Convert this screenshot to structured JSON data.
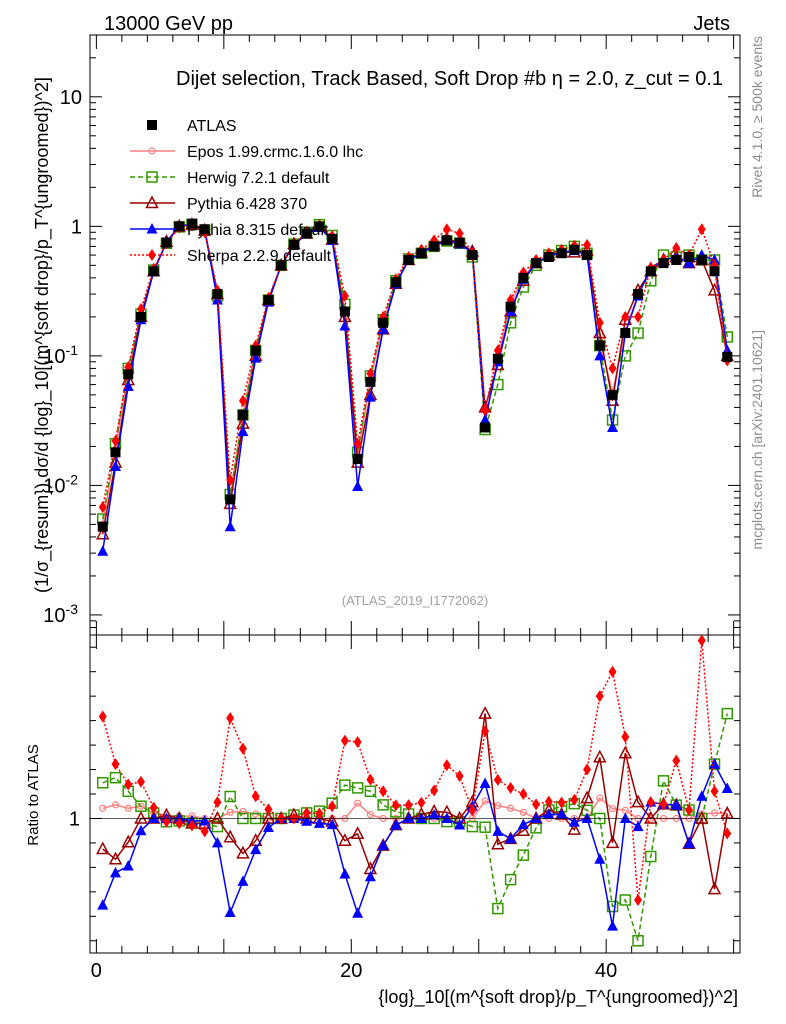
{
  "header": {
    "left": "13000 GeV pp",
    "right": "Jets"
  },
  "side_text": {
    "rivet": "Rivet 4.1.0, ≥ 500k events",
    "mcplots": "mcplots.cern.ch [arXiv:2401.10621]"
  },
  "analysis_tag": "(ATLAS_2019_I1772062)",
  "chart_data": {
    "type": "line",
    "title": "Dijet selection, Track Based, Soft Drop #b η = 2.0, z_cut = 0.1",
    "xlabel": "{log}_10[(m^{soft drop}/p_T^{ungroomed})^2]",
    "ylabel": "(1/σ_{resum}) dσ/d {log}_10[(m^{soft drop}/p_T^{ungroomed})^2]",
    "ratio_ylabel": "Ratio to ATLAS",
    "xlim": [
      -0.5,
      50.5
    ],
    "ylim": [
      0.0007,
      30
    ],
    "yscale": "log",
    "ratio_ylim": [
      0.45,
      1.75
    ],
    "x_ticks": [
      "0",
      "20",
      "40"
    ],
    "y_ticks": [
      "10^-3",
      "10^-2",
      "10^-1",
      "1",
      "10"
    ],
    "ratio_ticks": [
      "1"
    ],
    "x": [
      0.5,
      1.5,
      2.5,
      3.5,
      4.5,
      5.5,
      6.5,
      7.5,
      8.5,
      9.5,
      10.5,
      11.5,
      12.5,
      13.5,
      14.5,
      15.5,
      16.5,
      17.5,
      18.5,
      19.5,
      20.5,
      21.5,
      22.5,
      23.5,
      24.5,
      25.5,
      26.5,
      27.5,
      28.5,
      29.5,
      30.5,
      31.5,
      32.5,
      33.5,
      34.5,
      35.5,
      36.5,
      37.5,
      38.5,
      39.5,
      40.5,
      41.5,
      42.5,
      43.5,
      44.5,
      45.5,
      46.5,
      47.5,
      48.5,
      49.5
    ],
    "series": [
      {
        "name": "ATLAS",
        "color": "#000000",
        "marker": "square",
        "values": [
          0.0048,
          0.018,
          0.072,
          0.2,
          0.45,
          0.75,
          1.0,
          1.05,
          0.95,
          0.3,
          0.0078,
          0.035,
          0.11,
          0.27,
          0.5,
          0.72,
          0.88,
          1.0,
          0.8,
          0.22,
          0.016,
          0.063,
          0.18,
          0.37,
          0.55,
          0.62,
          0.7,
          0.78,
          0.75,
          0.6,
          0.028,
          0.095,
          0.24,
          0.4,
          0.52,
          0.58,
          0.62,
          0.66,
          0.6,
          0.12,
          0.05,
          0.15,
          0.3,
          0.45,
          0.52,
          0.55,
          0.58,
          0.55,
          0.45,
          0.098
        ]
      },
      {
        "name": "Epos 1.99.crmc.1.6.0 lhc",
        "color": "#ff8080",
        "marker": "star",
        "line": "solid",
        "values": [
          0.005,
          0.019,
          0.075,
          0.21,
          0.46,
          0.76,
          1.01,
          1.06,
          0.95,
          0.3,
          0.008,
          0.036,
          0.112,
          0.27,
          0.5,
          0.72,
          0.88,
          1.0,
          0.8,
          0.22,
          0.017,
          0.064,
          0.18,
          0.37,
          0.55,
          0.62,
          0.7,
          0.78,
          0.75,
          0.6,
          0.03,
          0.1,
          0.25,
          0.41,
          0.52,
          0.58,
          0.62,
          0.66,
          0.6,
          0.13,
          0.052,
          0.155,
          0.3,
          0.45,
          0.52,
          0.55,
          0.58,
          0.56,
          0.46,
          0.1
        ]
      },
      {
        "name": "Herwig 7.2.1 default",
        "color": "#339900",
        "marker": "open-square",
        "line": "dashed",
        "values": [
          0.0055,
          0.021,
          0.08,
          0.21,
          0.46,
          0.74,
          0.99,
          1.03,
          0.93,
          0.29,
          0.0085,
          0.035,
          0.11,
          0.27,
          0.5,
          0.73,
          0.9,
          1.03,
          0.85,
          0.25,
          0.018,
          0.07,
          0.19,
          0.38,
          0.56,
          0.62,
          0.7,
          0.77,
          0.74,
          0.58,
          0.027,
          0.06,
          0.18,
          0.34,
          0.5,
          0.6,
          0.65,
          0.7,
          0.62,
          0.12,
          0.032,
          0.1,
          0.15,
          0.38,
          0.6,
          0.58,
          0.6,
          0.55,
          0.55,
          0.14
        ]
      },
      {
        "name": "Pythia 6.428 370",
        "color": "#990000",
        "marker": "open-triangle",
        "line": "solid",
        "values": [
          0.0042,
          0.015,
          0.065,
          0.2,
          0.45,
          0.76,
          1.0,
          1.03,
          0.93,
          0.3,
          0.0072,
          0.03,
          0.1,
          0.27,
          0.5,
          0.73,
          0.88,
          1.0,
          0.79,
          0.2,
          0.015,
          0.05,
          0.16,
          0.36,
          0.55,
          0.63,
          0.72,
          0.8,
          0.75,
          0.64,
          0.04,
          0.085,
          0.22,
          0.38,
          0.52,
          0.6,
          0.63,
          0.63,
          0.65,
          0.15,
          0.045,
          0.19,
          0.32,
          0.45,
          0.55,
          0.58,
          0.52,
          0.55,
          0.32,
          0.1
        ]
      },
      {
        "name": "Pythia 8.315 default",
        "color": "#0000ff",
        "marker": "triangle",
        "line": "solid",
        "values": [
          0.0031,
          0.014,
          0.058,
          0.19,
          0.45,
          0.75,
          1.0,
          1.04,
          0.94,
          0.27,
          0.0048,
          0.026,
          0.096,
          0.26,
          0.5,
          0.72,
          0.87,
          0.98,
          0.78,
          0.17,
          0.0098,
          0.048,
          0.16,
          0.36,
          0.55,
          0.62,
          0.71,
          0.78,
          0.73,
          0.63,
          0.032,
          0.09,
          0.22,
          0.39,
          0.52,
          0.59,
          0.63,
          0.65,
          0.6,
          0.1,
          0.028,
          0.15,
          0.29,
          0.48,
          0.55,
          0.58,
          0.52,
          0.6,
          0.55,
          0.11
        ]
      },
      {
        "name": "Sherpa 2.2.9 default",
        "color": "#ff0000",
        "marker": "diamond",
        "line": "dotted",
        "values": [
          0.0068,
          0.022,
          0.082,
          0.23,
          0.47,
          0.74,
          0.98,
          1.02,
          0.9,
          0.32,
          0.011,
          0.045,
          0.12,
          0.28,
          0.5,
          0.72,
          0.9,
          1.02,
          0.84,
          0.29,
          0.021,
          0.073,
          0.2,
          0.39,
          0.58,
          0.66,
          0.78,
          0.95,
          0.88,
          0.62,
          0.038,
          0.11,
          0.27,
          0.44,
          0.55,
          0.62,
          0.66,
          0.71,
          0.72,
          0.18,
          0.08,
          0.2,
          0.2,
          0.48,
          0.55,
          0.68,
          0.6,
          0.95,
          0.5,
          0.092
        ]
      }
    ]
  }
}
